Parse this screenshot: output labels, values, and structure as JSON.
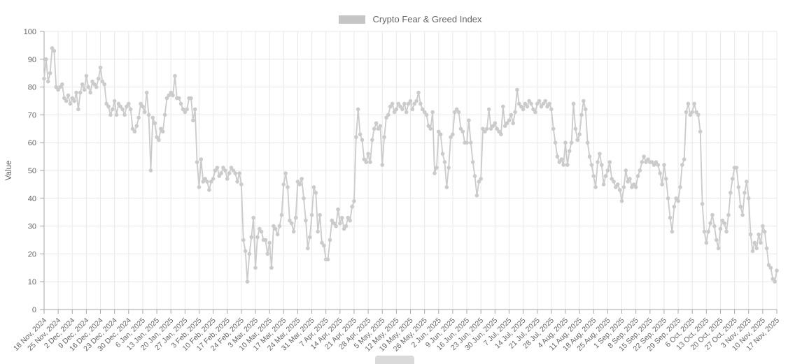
{
  "legend": {
    "label": "Crypto Fear & Greed Index",
    "swatch_color": "#c5c5c5"
  },
  "y_axis": {
    "title": "Value",
    "tick_labels": [
      "0",
      "10",
      "20",
      "30",
      "40",
      "50",
      "60",
      "70",
      "80",
      "90",
      "100"
    ]
  },
  "x_axis": {
    "tick_labels": [
      "18 Nov, 2024",
      "25 Nov, 2024",
      "2 Dec, 2024",
      "9 Dec, 2024",
      "16 Dec, 2024",
      "23 Dec, 2024",
      "30 Dec, 2024",
      "6 Jan, 2025",
      "13 Jan, 2025",
      "20 Jan, 2025",
      "27 Jan, 2025",
      "3 Feb, 2025",
      "10 Feb, 2025",
      "17 Feb, 2025",
      "24 Feb, 2025",
      "3 Mar, 2025",
      "10 Mar, 2025",
      "17 Mar, 2025",
      "24 Mar, 2025",
      "31 Mar, 2025",
      "7 Apr, 2025",
      "14 Apr, 2025",
      "21 Apr, 2025",
      "28 Apr, 2025",
      "5 May, 2025",
      "12 May, 2025",
      "19 May, 2025",
      "26 May, 2025",
      "2 Jun, 2025",
      "9 Jun, 2025",
      "16 Jun, 2025",
      "23 Jun, 2025",
      "30 Jun, 2025",
      "7 Jul, 2025",
      "14 Jul, 2025",
      "21 Jul, 2025",
      "28 Jul, 2025",
      "4 Aug, 2025",
      "11 Aug, 2025",
      "18 Aug, 2025",
      "25 Aug, 2025",
      "1 Sep, 2025",
      "8 Sep, 2025",
      "15 Sep, 2025",
      "22 Sep, 2025",
      "29 Sep, 2025",
      "6 Oct, 2025",
      "13 Oct, 2025",
      "20 Oct, 2025",
      "27 Oct, 2025",
      "3 Nov, 2025",
      "10 Nov, 2025",
      "17 Nov, 2025"
    ]
  },
  "colors": {
    "line": "#cbcbcb",
    "point": "#cbcbcb",
    "grid": "#e8e8e8",
    "axis_border": "#a6a6a6",
    "text": "#666666"
  },
  "chart_data": {
    "type": "line",
    "title": "Crypto Fear & Greed Index",
    "ylabel": "Value",
    "ylim": [
      0,
      100
    ],
    "grid": true,
    "legend_position": "top",
    "x_range": [
      "18 Nov, 2024",
      "17 Nov, 2025"
    ],
    "frequency": "daily",
    "x_tick_labels": [
      "18 Nov, 2024",
      "25 Nov, 2024",
      "2 Dec, 2024",
      "9 Dec, 2024",
      "16 Dec, 2024",
      "23 Dec, 2024",
      "30 Dec, 2024",
      "6 Jan, 2025",
      "13 Jan, 2025",
      "20 Jan, 2025",
      "27 Jan, 2025",
      "3 Feb, 2025",
      "10 Feb, 2025",
      "17 Feb, 2025",
      "24 Feb, 2025",
      "3 Mar, 2025",
      "10 Mar, 2025",
      "17 Mar, 2025",
      "24 Mar, 2025",
      "31 Mar, 2025",
      "7 Apr, 2025",
      "14 Apr, 2025",
      "21 Apr, 2025",
      "28 Apr, 2025",
      "5 May, 2025",
      "12 May, 2025",
      "19 May, 2025",
      "26 May, 2025",
      "2 Jun, 2025",
      "9 Jun, 2025",
      "16 Jun, 2025",
      "23 Jun, 2025",
      "30 Jun, 2025",
      "7 Jul, 2025",
      "14 Jul, 2025",
      "21 Jul, 2025",
      "28 Jul, 2025",
      "4 Aug, 2025",
      "11 Aug, 2025",
      "18 Aug, 2025",
      "25 Aug, 2025",
      "1 Sep, 2025",
      "8 Sep, 2025",
      "15 Sep, 2025",
      "22 Sep, 2025",
      "29 Sep, 2025",
      "6 Oct, 2025",
      "13 Oct, 2025",
      "20 Oct, 2025",
      "27 Oct, 2025",
      "3 Nov, 2025",
      "10 Nov, 2025",
      "17 Nov, 2025"
    ],
    "series": [
      {
        "name": "Crypto Fear & Greed Index",
        "values": [
          83,
          90,
          82,
          85,
          94,
          93,
          80,
          79,
          80,
          81,
          76,
          75,
          77,
          74,
          76,
          75,
          78,
          72,
          78,
          81,
          79,
          84,
          80,
          78,
          82,
          81,
          80,
          83,
          87,
          82,
          81,
          74,
          73,
          70,
          72,
          75,
          70,
          74,
          73,
          72,
          70,
          73,
          74,
          72,
          65,
          64,
          66,
          69,
          74,
          73,
          71,
          78,
          70,
          50,
          69,
          67,
          62,
          61,
          65,
          64,
          70,
          76,
          77,
          78,
          77,
          84,
          76,
          76,
          74,
          72,
          71,
          72,
          76,
          76,
          68,
          72,
          53,
          44,
          54,
          46,
          47,
          46,
          43,
          46,
          47,
          50,
          51,
          48,
          49,
          51,
          50,
          47,
          49,
          51,
          50,
          49,
          46,
          49,
          45,
          25,
          21,
          10,
          20,
          26,
          33,
          15,
          26,
          29,
          28,
          25,
          25,
          20,
          24,
          15,
          30,
          29,
          27,
          30,
          34,
          45,
          49,
          44,
          32,
          31,
          28,
          33,
          46,
          45,
          47,
          40,
          32,
          22,
          26,
          34,
          44,
          42,
          28,
          34,
          24,
          23,
          18,
          18,
          25,
          32,
          31,
          30,
          36,
          31,
          33,
          29,
          30,
          33,
          32,
          37,
          39,
          62,
          72,
          63,
          61,
          54,
          53,
          56,
          53,
          61,
          65,
          67,
          65,
          66,
          52,
          62,
          69,
          70,
          73,
          74,
          71,
          72,
          74,
          73,
          72,
          74,
          71,
          74,
          75,
          72,
          74,
          75,
          78,
          74,
          72,
          71,
          70,
          66,
          65,
          71,
          49,
          51,
          64,
          63,
          56,
          53,
          44,
          51,
          62,
          63,
          71,
          72,
          71,
          65,
          64,
          60,
          60,
          68,
          60,
          53,
          48,
          41,
          46,
          47,
          65,
          64,
          65,
          72,
          65,
          66,
          67,
          65,
          64,
          63,
          73,
          66,
          67,
          68,
          70,
          67,
          71,
          79,
          74,
          73,
          72,
          74,
          73,
          75,
          74,
          72,
          71,
          74,
          75,
          73,
          74,
          75,
          73,
          74,
          72,
          65,
          60,
          55,
          53,
          54,
          52,
          60,
          52,
          57,
          60,
          74,
          65,
          61,
          63,
          70,
          75,
          72,
          60,
          55,
          52,
          48,
          44,
          53,
          56,
          52,
          45,
          48,
          50,
          53,
          47,
          46,
          44,
          45,
          43,
          39,
          44,
          50,
          46,
          47,
          44,
          45,
          44,
          48,
          50,
          53,
          55,
          53,
          54,
          53,
          53,
          52,
          53,
          52,
          49,
          45,
          52,
          47,
          40,
          33,
          28,
          37,
          40,
          39,
          44,
          52,
          54,
          71,
          74,
          70,
          71,
          74,
          71,
          70,
          64,
          38,
          28,
          24,
          28,
          31,
          34,
          30,
          25,
          22,
          29,
          32,
          31,
          28,
          34,
          42,
          47,
          51,
          51,
          44,
          37,
          34,
          42,
          46,
          40,
          27,
          21,
          24,
          22,
          27,
          24,
          30,
          28,
          22,
          16,
          15,
          11,
          10,
          14
        ]
      }
    ]
  }
}
